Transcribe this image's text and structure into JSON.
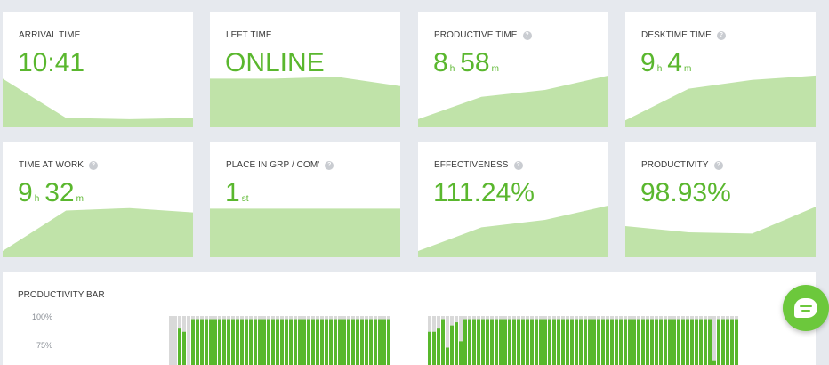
{
  "colors": {
    "accent": "#5ab72e",
    "area_fill": "#c0e3a9",
    "bar_green": "#58b82c",
    "bar_gray": "#d9d9d9"
  },
  "cards": [
    {
      "title": "ARRIVAL TIME",
      "value": "10:41",
      "help": false,
      "trend": [
        0.78,
        0.15,
        0.13,
        0.15
      ]
    },
    {
      "title": "LEFT TIME",
      "value": "ONLINE",
      "help": false,
      "trend": [
        0.78,
        0.78,
        0.81,
        0.66
      ]
    },
    {
      "title": "PRODUCTIVE TIME",
      "hours": "8",
      "hours_unit": "h",
      "minutes": "58",
      "minutes_unit": "m",
      "help": true,
      "trend": [
        0.13,
        0.49,
        0.6,
        0.83
      ]
    },
    {
      "title": "DESKTIME TIME",
      "hours": "9",
      "hours_unit": "h",
      "minutes": "4",
      "minutes_unit": "m",
      "help": true,
      "trend": [
        0.11,
        0.62,
        0.76,
        0.83
      ]
    },
    {
      "title": "TIME AT WORK",
      "hours": "9",
      "hours_unit": "h",
      "minutes": "32",
      "minutes_unit": "m",
      "help": true,
      "trend": [
        0.1,
        0.75,
        0.79,
        0.72
      ]
    },
    {
      "title": "PLACE IN GRP / COM'",
      "rank": "1",
      "rank_suffix": "st",
      "help": true,
      "trend": [
        0.78,
        0.78,
        0.78,
        0.78
      ]
    },
    {
      "title": "EFFECTIVENESS",
      "value": "111.24%",
      "help": true,
      "trend": [
        0.1,
        0.48,
        0.6,
        0.83
      ]
    },
    {
      "title": "PRODUCTIVITY",
      "value": "98.93%",
      "help": true,
      "trend": [
        0.5,
        0.4,
        0.38,
        0.81
      ]
    }
  ],
  "productivity_bar": {
    "title": "PRODUCTIVITY BAR",
    "y_labels": [
      "100%",
      "75%"
    ],
    "segments": [
      [
        0.05,
        0.1,
        0.8,
        0.75,
        0.2,
        0.95,
        0.95,
        0.95,
        0.95,
        0.95,
        0.95,
        0.95,
        0.95,
        0.95,
        0.95,
        0.95,
        0.95,
        0.95,
        0.95,
        0.95,
        0.95,
        0.95,
        0.95,
        0.95,
        0.95,
        0.95,
        0.95,
        0.95,
        0.95,
        0.95,
        0.95,
        0.95,
        0.95,
        0.95,
        0.95,
        0.95,
        0.95,
        0.95,
        0.95,
        0.95,
        0.95,
        0.95,
        0.95,
        0.95,
        0.95,
        0.95,
        0.95,
        0.95,
        0.95,
        0.95
      ],
      [
        0.75,
        0.75,
        0.8,
        0.95,
        0.5,
        0.85,
        0.9,
        0.6,
        0.95,
        0.95,
        0.95,
        0.95,
        0.95,
        0.95,
        0.95,
        0.95,
        0.95,
        0.95,
        0.95,
        0.95,
        0.95,
        0.95,
        0.95,
        0.95,
        0.95,
        0.95,
        0.95,
        0.95,
        0.95,
        0.95,
        0.95,
        0.95,
        0.95,
        0.95,
        0.95,
        0.95,
        0.95,
        0.95,
        0.95,
        0.95,
        0.95,
        0.95,
        0.95,
        0.95,
        0.95,
        0.95,
        0.95,
        0.95,
        0.95,
        0.95,
        0.95,
        0.95,
        0.95,
        0.95,
        0.95,
        0.95,
        0.95,
        0.95,
        0.95,
        0.95,
        0.95,
        0.95,
        0.95,
        0.95,
        0.3,
        0.95,
        0.95,
        0.95,
        0.95,
        0.95
      ]
    ]
  },
  "chat": {
    "icon": "chat-icon"
  }
}
